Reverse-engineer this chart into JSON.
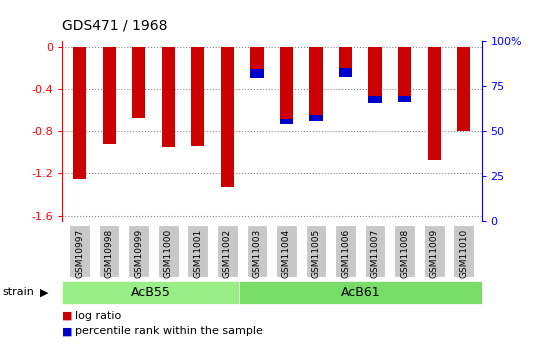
{
  "title": "GDS471 / 1968",
  "samples": [
    "GSM10997",
    "GSM10998",
    "GSM10999",
    "GSM11000",
    "GSM11001",
    "GSM11002",
    "GSM11003",
    "GSM11004",
    "GSM11005",
    "GSM11006",
    "GSM11007",
    "GSM11008",
    "GSM11009",
    "GSM11010"
  ],
  "log_ratio": [
    -1.25,
    -0.92,
    -0.68,
    -0.95,
    -0.94,
    -1.33,
    -0.3,
    -0.73,
    -0.7,
    -0.29,
    -0.53,
    -0.52,
    -1.07,
    -0.8
  ],
  "percentile_rank_height": [
    0.0,
    0.0,
    0.0,
    0.0,
    0.0,
    0.0,
    0.09,
    0.04,
    0.05,
    0.09,
    0.06,
    0.05,
    0.0,
    0.0
  ],
  "bar_color": "#cc0000",
  "percentile_color": "#0000cc",
  "ylim_left": [
    -1.65,
    0.05
  ],
  "ylim_right": [
    0,
    100
  ],
  "yticks_left": [
    0.0,
    -0.4,
    -0.8,
    -1.2,
    -1.6
  ],
  "ytick_labels_left": [
    "0",
    "-0.4",
    "-0.8",
    "-1.2",
    "-1.6"
  ],
  "yticks_right": [
    0,
    25,
    50,
    75,
    100
  ],
  "ytick_labels_right": [
    "0",
    "25",
    "50",
    "75",
    "100%"
  ],
  "background_color": "#ffffff",
  "plot_bg_color": "#ffffff",
  "dotted_grid_color": "#888888",
  "bar_width": 0.45,
  "acb55_color": "#99ee88",
  "acb61_color": "#77dd66",
  "tick_box_color": "#c8c8c8",
  "legend_items": [
    {
      "label": "log ratio",
      "color": "#cc0000"
    },
    {
      "label": "percentile rank within the sample",
      "color": "#0000cc"
    }
  ]
}
